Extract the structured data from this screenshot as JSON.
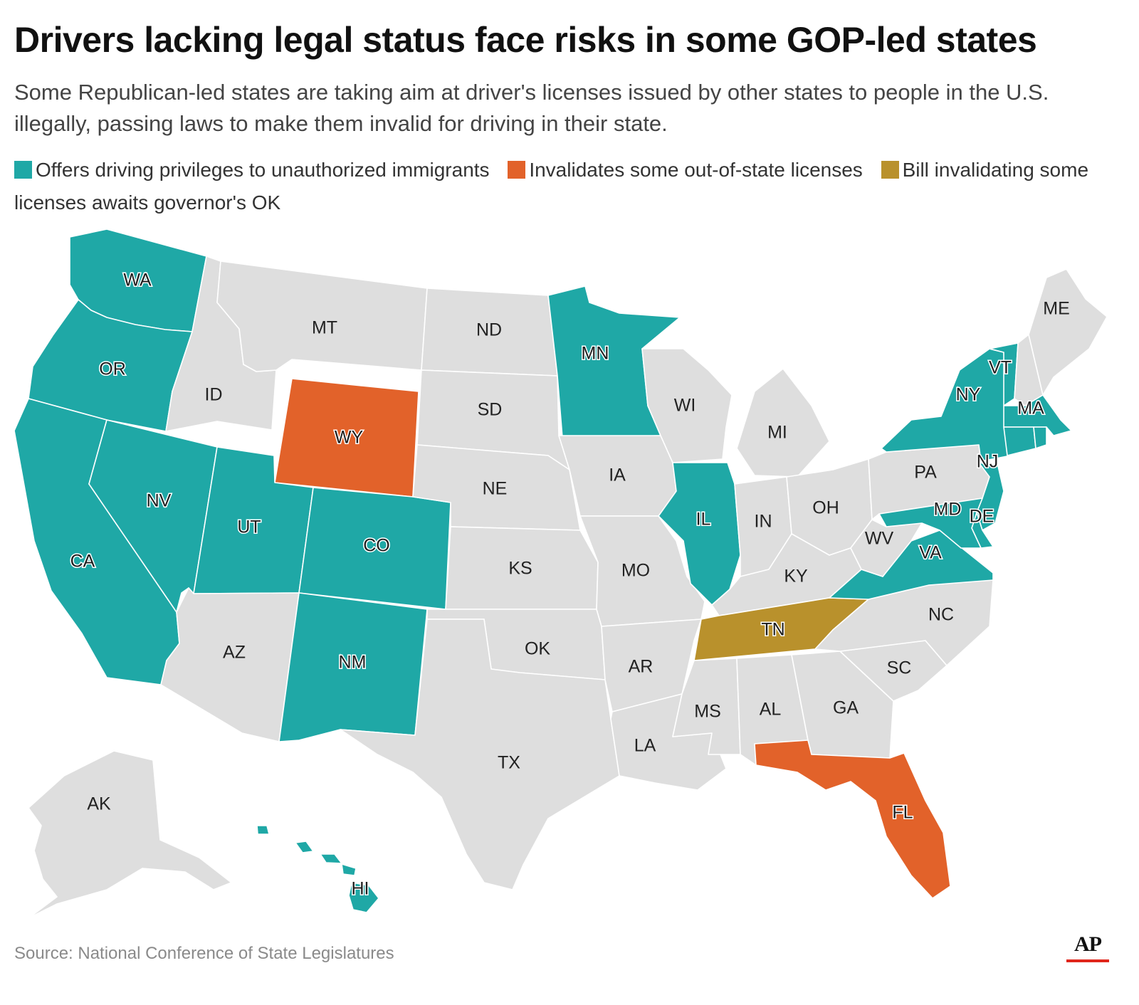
{
  "header": {
    "title": "Drivers lacking legal status face risks in some GOP-led states",
    "subtitle": "Some Republican-led states are taking aim at driver's licenses issued by other states to people in the U.S. illegally, passing laws to make them invalid for driving in their state."
  },
  "legend": [
    {
      "category": "offers",
      "label": "Offers driving privileges to unauthorized immigrants",
      "color": "#1fa8a6"
    },
    {
      "category": "invalidates",
      "label": "Invalidates some out-of-state licenses",
      "color": "#e2622a"
    },
    {
      "category": "pending",
      "label": "Bill invalidating some licenses awaits governor's OK",
      "color": "#b9912c"
    }
  ],
  "colors": {
    "none": "#dedede",
    "border": "#ffffff"
  },
  "states": [
    {
      "abbr": "WA",
      "category": "offers"
    },
    {
      "abbr": "OR",
      "category": "offers"
    },
    {
      "abbr": "CA",
      "category": "offers"
    },
    {
      "abbr": "NV",
      "category": "offers"
    },
    {
      "abbr": "ID",
      "category": "none"
    },
    {
      "abbr": "MT",
      "category": "none"
    },
    {
      "abbr": "WY",
      "category": "invalidates"
    },
    {
      "abbr": "UT",
      "category": "offers"
    },
    {
      "abbr": "CO",
      "category": "offers"
    },
    {
      "abbr": "AZ",
      "category": "none"
    },
    {
      "abbr": "NM",
      "category": "offers"
    },
    {
      "abbr": "ND",
      "category": "none"
    },
    {
      "abbr": "SD",
      "category": "none"
    },
    {
      "abbr": "NE",
      "category": "none"
    },
    {
      "abbr": "KS",
      "category": "none"
    },
    {
      "abbr": "OK",
      "category": "none"
    },
    {
      "abbr": "TX",
      "category": "none"
    },
    {
      "abbr": "MN",
      "category": "offers"
    },
    {
      "abbr": "IA",
      "category": "none"
    },
    {
      "abbr": "MO",
      "category": "none"
    },
    {
      "abbr": "AR",
      "category": "none"
    },
    {
      "abbr": "LA",
      "category": "none"
    },
    {
      "abbr": "WI",
      "category": "none"
    },
    {
      "abbr": "IL",
      "category": "offers"
    },
    {
      "abbr": "MI",
      "category": "none"
    },
    {
      "abbr": "IN",
      "category": "none"
    },
    {
      "abbr": "OH",
      "category": "none"
    },
    {
      "abbr": "KY",
      "category": "none"
    },
    {
      "abbr": "TN",
      "category": "pending"
    },
    {
      "abbr": "MS",
      "category": "none"
    },
    {
      "abbr": "AL",
      "category": "none"
    },
    {
      "abbr": "GA",
      "category": "none"
    },
    {
      "abbr": "FL",
      "category": "invalidates"
    },
    {
      "abbr": "SC",
      "category": "none"
    },
    {
      "abbr": "NC",
      "category": "none"
    },
    {
      "abbr": "VA",
      "category": "offers"
    },
    {
      "abbr": "WV",
      "category": "none"
    },
    {
      "abbr": "PA",
      "category": "none"
    },
    {
      "abbr": "NY",
      "category": "offers"
    },
    {
      "abbr": "NJ",
      "category": "offers"
    },
    {
      "abbr": "DE",
      "category": "offers"
    },
    {
      "abbr": "MD",
      "category": "offers"
    },
    {
      "abbr": "VT",
      "category": "offers"
    },
    {
      "abbr": "NH",
      "category": "none"
    },
    {
      "abbr": "MA",
      "category": "offers"
    },
    {
      "abbr": "CT",
      "category": "offers"
    },
    {
      "abbr": "RI",
      "category": "offers"
    },
    {
      "abbr": "ME",
      "category": "none"
    },
    {
      "abbr": "AK",
      "category": "none"
    },
    {
      "abbr": "HI",
      "category": "offers"
    }
  ],
  "footer": {
    "source": "Source: National Conference of State Legislatures",
    "logo": "AP"
  }
}
